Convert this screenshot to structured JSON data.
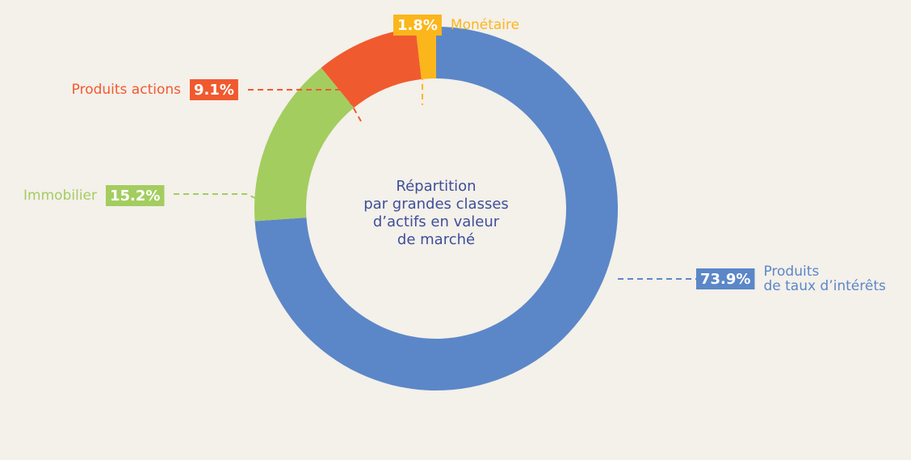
{
  "chart_data": {
    "type": "donut",
    "title": "Répartition\npar grandes classes\nd’actifs en valeur\nde marché",
    "categories": [
      "Produits\nde taux d’intérêts",
      "Immobilier",
      "Produits actions",
      "Monétaire"
    ],
    "values": [
      73.9,
      15.2,
      9.1,
      1.8
    ],
    "value_labels": [
      "73.9%",
      "15.2%",
      "9.1%",
      "1.8%"
    ],
    "colors": [
      "#5b87c8",
      "#a3cd5f",
      "#f05a2f",
      "#fbb61b"
    ]
  }
}
